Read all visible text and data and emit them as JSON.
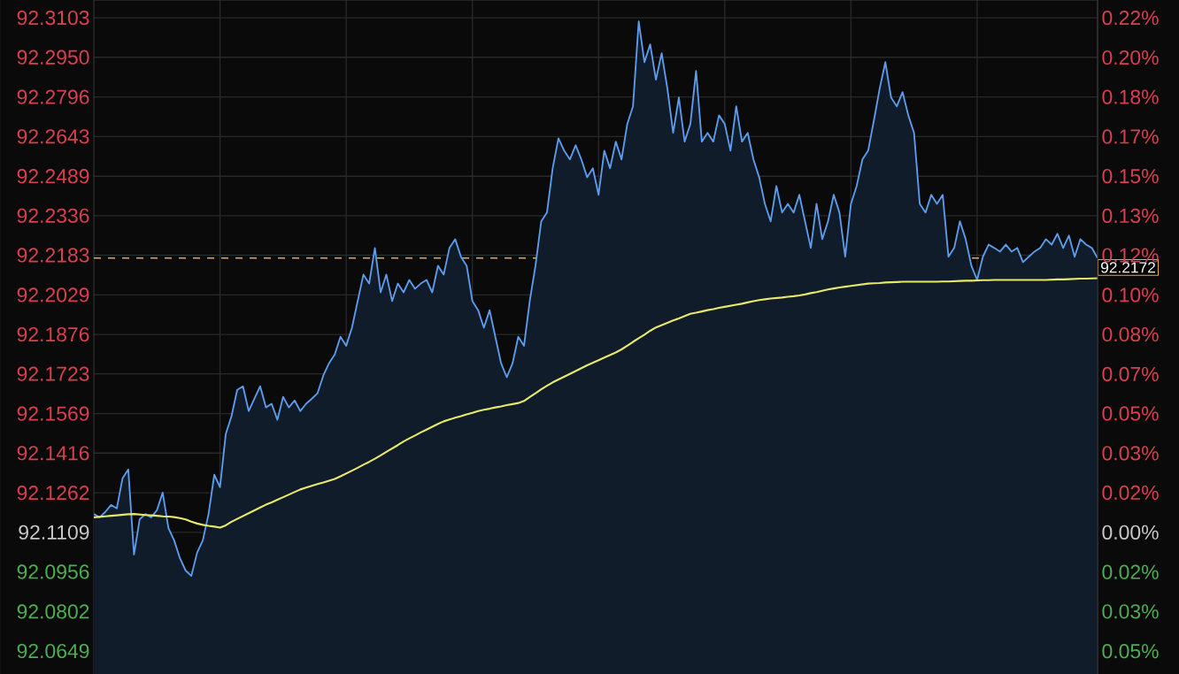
{
  "chart_data": {
    "type": "line",
    "categories": [
      null,
      null,
      null,
      null,
      null,
      null,
      null,
      null,
      null,
      null,
      null,
      null,
      null,
      null,
      null,
      null,
      null,
      null,
      null,
      null,
      null,
      null,
      null,
      null,
      null,
      null,
      null,
      null,
      null,
      null,
      null,
      null,
      null,
      null,
      null,
      null,
      null,
      null,
      null,
      null,
      null,
      null,
      null,
      null,
      null,
      null,
      null,
      null,
      null,
      null,
      null,
      null,
      null,
      null,
      null,
      null,
      null,
      null,
      null,
      null,
      null,
      null,
      null,
      null,
      null,
      null,
      null,
      null,
      null,
      null,
      null,
      null,
      null,
      null,
      null,
      null,
      null,
      null,
      null,
      null,
      null,
      null,
      null,
      null,
      null,
      null,
      null,
      null,
      null,
      null,
      null,
      null,
      null,
      null,
      null,
      null,
      null,
      null,
      null,
      null,
      null,
      null,
      null,
      null,
      null,
      null,
      null,
      null,
      null,
      null,
      null,
      null,
      null,
      null,
      null,
      null,
      null,
      null,
      null,
      null,
      null,
      null,
      null,
      null,
      null,
      null,
      null,
      null,
      null,
      null,
      null,
      null,
      null,
      null,
      null,
      null,
      null,
      null,
      null,
      null,
      null,
      null,
      null,
      null,
      null,
      null,
      null,
      null,
      null,
      null,
      null,
      null,
      null,
      null,
      null,
      null,
      null,
      null,
      null,
      null,
      null,
      null,
      null,
      null,
      null,
      null,
      null,
      null,
      null,
      null,
      null,
      null,
      null,
      null,
      null,
      null
    ],
    "ylim": [
      92.056,
      92.3172
    ],
    "yticks": [
      {
        "value": 92.3103,
        "label": "92.3103"
      },
      {
        "value": 92.295,
        "label": "92.2950"
      },
      {
        "value": 92.2796,
        "label": "92.2796"
      },
      {
        "value": 92.2643,
        "label": "92.2643"
      },
      {
        "value": 92.2489,
        "label": "92.2489"
      },
      {
        "value": 92.2336,
        "label": "92.2336"
      },
      {
        "value": 92.2183,
        "label": "92.2183"
      },
      {
        "value": 92.2029,
        "label": "92.2029"
      },
      {
        "value": 92.1876,
        "label": "92.1876"
      },
      {
        "value": 92.1723,
        "label": "92.1723"
      },
      {
        "value": 92.1569,
        "label": "92.1569"
      },
      {
        "value": 92.1416,
        "label": "92.1416"
      },
      {
        "value": 92.1262,
        "label": "92.1262"
      },
      {
        "value": 92.1109,
        "label": "92.1109"
      },
      {
        "value": 92.0956,
        "label": "92.0956"
      },
      {
        "value": 92.0802,
        "label": "92.0802"
      },
      {
        "value": 92.0649,
        "label": "92.0649"
      }
    ],
    "y2lim": [
      -0.0596,
      0.224
    ],
    "y2ticks": [
      {
        "value": 0.2165,
        "label": "0.22%"
      },
      {
        "value": 0.1998,
        "label": "0.20%"
      },
      {
        "value": 0.1832,
        "label": "0.18%"
      },
      {
        "value": 0.1665,
        "label": "0.17%"
      },
      {
        "value": 0.1499,
        "label": "0.15%"
      },
      {
        "value": 0.1332,
        "label": "0.13%"
      },
      {
        "value": 0.1166,
        "label": "0.12%"
      },
      {
        "value": 0.0999,
        "label": "0.10%"
      },
      {
        "value": 0.0833,
        "label": "0.08%"
      },
      {
        "value": 0.0666,
        "label": "0.07%"
      },
      {
        "value": 0.05,
        "label": "0.05%"
      },
      {
        "value": 0.0333,
        "label": "0.03%"
      },
      {
        "value": 0.0167,
        "label": "0.02%"
      },
      {
        "value": 0,
        "label": "0.00%"
      },
      {
        "value": -0.0167,
        "label": "0.02%"
      },
      {
        "value": -0.0333,
        "label": "0.03%"
      },
      {
        "value": -0.05,
        "label": "0.05%"
      }
    ],
    "grid": true,
    "ref_lines": [
      {
        "axis": "y",
        "value": 92.2172,
        "label": "92.2172",
        "color": "#e8a850",
        "line_style": "dashed"
      }
    ],
    "series": [
      {
        "type": "area",
        "color": "#5d9cec",
        "values": [
          92.118,
          92.1167,
          92.1188,
          92.1215,
          92.1202,
          92.1318,
          92.1353,
          92.1023,
          92.116,
          92.118,
          92.1167,
          92.1195,
          92.1263,
          92.1126,
          92.1078,
          92.1009,
          92.0961,
          92.094,
          92.103,
          92.1078,
          92.118,
          92.1332,
          92.1284,
          92.149,
          92.1559,
          92.1661,
          92.1675,
          92.1579,
          92.1627,
          92.1675,
          92.1593,
          92.1607,
          92.1545,
          92.1634,
          92.1593,
          92.162,
          92.1579,
          92.1607,
          92.1627,
          92.1648,
          92.1716,
          92.1764,
          92.1798,
          92.1867,
          92.1832,
          92.1902,
          92.2005,
          92.2108,
          92.2073,
          92.2211,
          92.2039,
          92.2108,
          92.2005,
          92.2073,
          92.2039,
          92.2087,
          92.2053,
          92.2073,
          92.2087,
          92.2039,
          92.2142,
          92.2108,
          92.2211,
          92.2245,
          92.2177,
          92.2142,
          92.2005,
          92.197,
          92.1902,
          92.197,
          92.1867,
          92.1764,
          92.171,
          92.1764,
          92.1867,
          92.1832,
          92.2005,
          92.2142,
          92.2314,
          92.2348,
          92.252,
          92.2636,
          92.2588,
          92.2554,
          92.2609,
          92.2554,
          92.2485,
          92.252,
          92.2417,
          92.2588,
          92.252,
          92.2623,
          92.2554,
          92.2691,
          92.276,
          92.3089,
          92.2931,
          92.3,
          92.2863,
          92.2966,
          92.2828,
          92.2657,
          92.2794,
          92.2623,
          92.2691,
          92.2897,
          92.2623,
          92.2657,
          92.2623,
          92.2725,
          92.2691,
          92.2588,
          92.276,
          92.2623,
          92.2657,
          92.2554,
          92.2485,
          92.2382,
          92.2314,
          92.2451,
          92.2348,
          92.2382,
          92.2348,
          92.2417,
          92.2314,
          92.2211,
          92.2382,
          92.2245,
          92.2314,
          92.2417,
          92.2348,
          92.2177,
          92.2382,
          92.2451,
          92.2554,
          92.2588,
          92.2705,
          92.2828,
          92.2931,
          92.2794,
          92.276,
          92.2815,
          92.2725,
          92.2657,
          92.2382,
          92.2348,
          92.2417,
          92.2382,
          92.2417,
          92.2177,
          92.2211,
          92.2314,
          92.2245,
          92.2142,
          92.2087,
          92.2177,
          92.2224,
          92.2211,
          92.2197,
          92.2224,
          92.2197,
          92.2211,
          92.2156,
          92.2177,
          92.2197,
          92.2211,
          92.2245,
          92.2224,
          92.2266,
          92.2211,
          92.2259,
          92.2177,
          92.2245,
          92.2224,
          92.2211,
          92.2172
        ]
      },
      {
        "color": "#e8e86a",
        "values": [
          92.1167,
          92.1169,
          92.1171,
          92.1173,
          92.1175,
          92.1177,
          92.1179,
          92.118,
          92.1178,
          92.1176,
          92.1175,
          92.1173,
          92.1171,
          92.117,
          92.1168,
          92.1164,
          92.1159,
          92.115,
          92.1143,
          92.1138,
          92.1134,
          92.1131,
          92.1127,
          92.1136,
          92.115,
          92.1161,
          92.1172,
          92.1183,
          92.1194,
          92.1205,
          92.1216,
          92.1225,
          92.1235,
          92.1245,
          92.1255,
          92.1265,
          92.1275,
          92.1282,
          92.1289,
          92.1296,
          92.1302,
          92.1309,
          92.1316,
          92.1326,
          92.1337,
          92.1348,
          92.1359,
          92.1371,
          92.1382,
          92.1394,
          92.1407,
          92.1421,
          92.1434,
          92.1447,
          92.1461,
          92.1473,
          92.1484,
          92.1496,
          92.1507,
          92.1518,
          92.1529,
          92.1539,
          92.1546,
          92.1553,
          92.1559,
          92.1566,
          92.1572,
          92.1579,
          92.1584,
          92.1588,
          92.1593,
          92.1597,
          92.1602,
          92.1606,
          92.161,
          92.1618,
          92.1633,
          92.1648,
          92.1663,
          92.1677,
          92.169,
          92.1701,
          92.1712,
          92.1723,
          92.1734,
          92.1745,
          92.1756,
          92.1766,
          92.1776,
          92.1786,
          92.1796,
          92.1806,
          92.1818,
          92.1832,
          92.1847,
          92.1861,
          92.1875,
          92.189,
          92.1903,
          92.1912,
          92.1921,
          92.193,
          92.1938,
          92.1947,
          92.1956,
          92.196,
          92.1965,
          92.197,
          92.1974,
          92.1979,
          92.1983,
          92.1987,
          92.1991,
          92.1995,
          92.2,
          92.2005,
          92.2009,
          92.2012,
          92.2015,
          92.2017,
          92.2019,
          92.2022,
          92.2024,
          92.2027,
          92.2031,
          92.2036,
          92.204,
          92.2045,
          92.205,
          92.2054,
          92.2058,
          92.2061,
          92.2064,
          92.2067,
          92.207,
          92.2073,
          92.2074,
          92.2075,
          92.2077,
          92.2078,
          92.2079,
          92.208,
          92.208,
          92.208,
          92.208,
          92.208,
          92.208,
          92.208,
          92.2081,
          92.2081,
          92.2082,
          92.2083,
          92.2084,
          92.2084,
          92.2085,
          92.2086,
          92.2086,
          92.2087,
          92.2087,
          92.2087,
          92.2087,
          92.2087,
          92.2087,
          92.2087,
          92.2087,
          92.2087,
          92.2087,
          92.2088,
          92.2089,
          92.2089,
          92.209,
          92.2091,
          92.2092,
          92.2092,
          92.2093,
          92.2094
        ]
      }
    ]
  }
}
